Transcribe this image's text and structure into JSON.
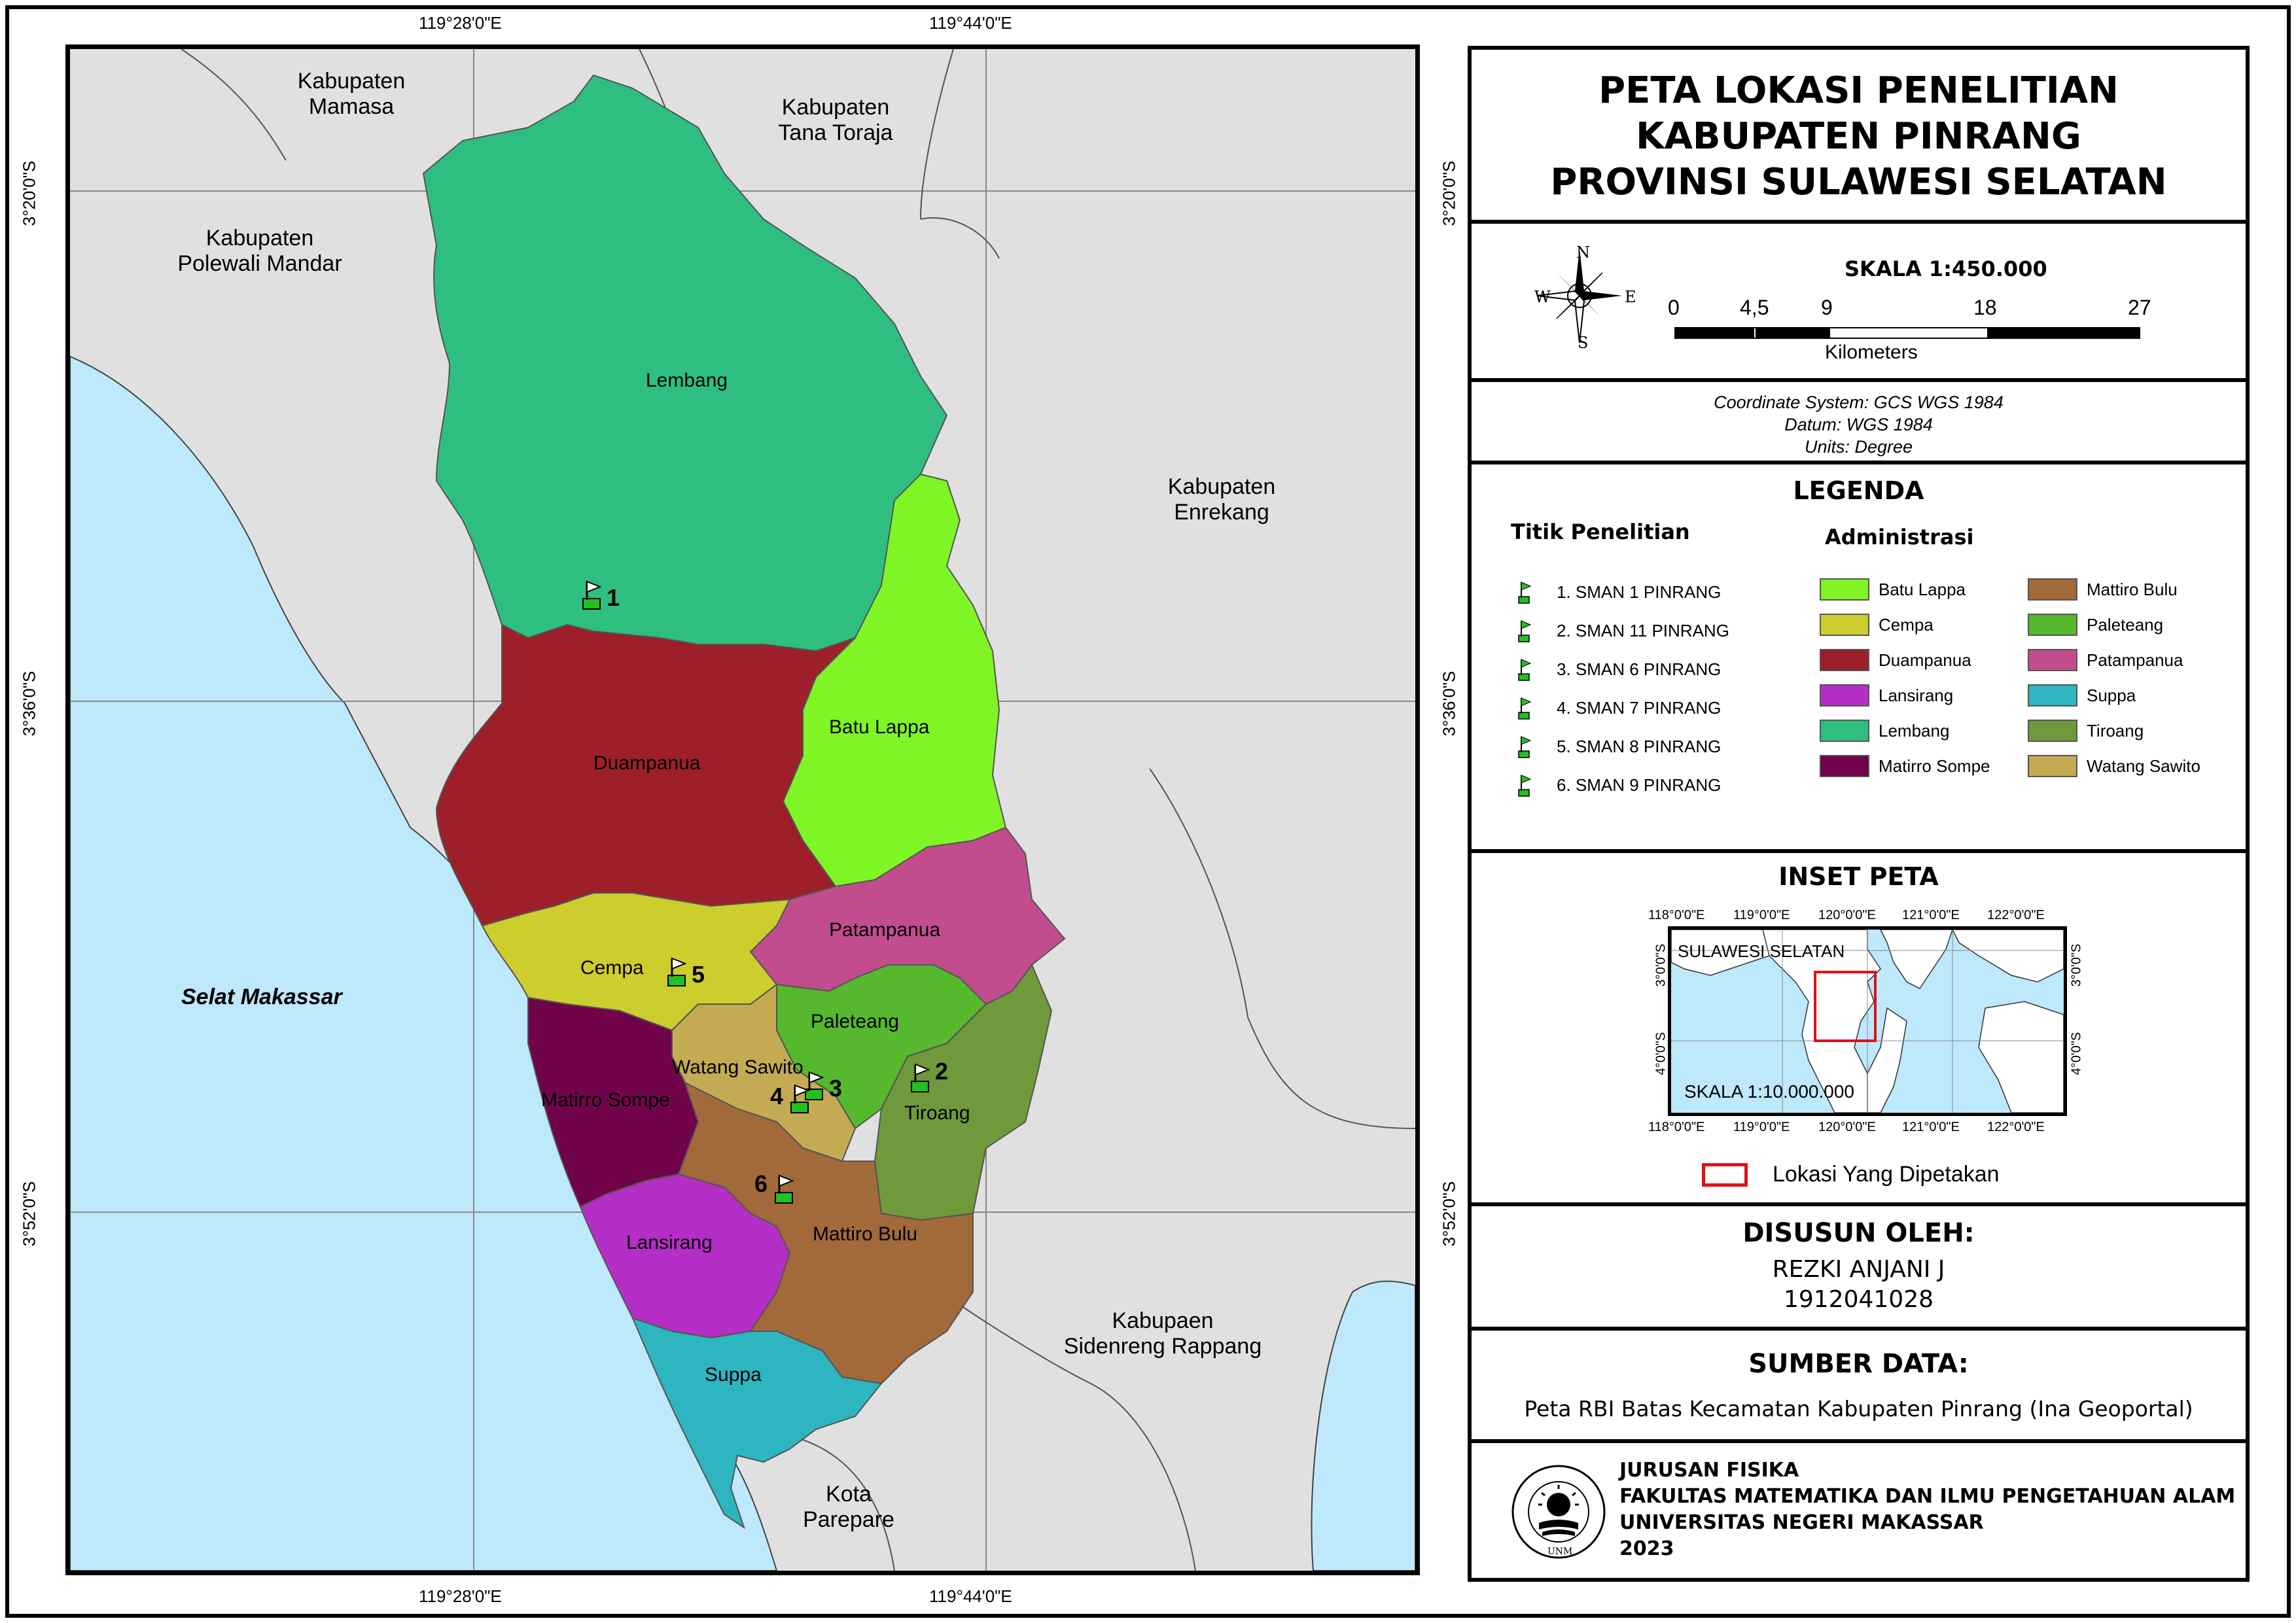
{
  "map": {
    "title_lines": [
      "PETA LOKASI PENELITIAN",
      "KABUPATEN PINRANG",
      "PROVINSI SULAWESI SELATAN"
    ],
    "graticule": {
      "top_left_lon": "119°28'0\"E",
      "top_right_lon": "119°44'0\"E",
      "bottom_left_lon": "119°28'0\"E",
      "bottom_right_lon": "119°44'0\"E",
      "lat_1": "3°20'0\"S",
      "lat_2": "3°36'0\"S",
      "lat_3": "3°52'0\"S"
    },
    "neighbor_labels": {
      "mamasa_1": "Kabupaten",
      "mamasa_2": "Mamasa",
      "toraja_1": "Kabupaten",
      "toraja_2": "Tana Toraja",
      "polman_1": "Kabupaten",
      "polman_2": "Polewali Mandar",
      "enrekang_1": "Kabupaten",
      "enrekang_2": "Enrekang",
      "sidrap_1": "Kabupaen",
      "sidrap_2": "Sidenreng Rappang",
      "parepare_1": "Kota",
      "parepare_2": "Parepare",
      "sea": "Selat Makassar"
    },
    "district_labels": {
      "lembang": "Lembang",
      "batu_lappa": "Batu Lappa",
      "duampanua": "Duampanua",
      "patampanua": "Patampanua",
      "cempa": "Cempa",
      "paleteang": "Paleteang",
      "watang_sawito": "Watang Sawito",
      "tiroang": "Tiroang",
      "matirro_sompe": "Matirro Sompe",
      "lansirang": "Lansirang",
      "mattiro_bulu": "Mattiro Bulu",
      "suppa": "Suppa"
    },
    "point_numbers": [
      "1",
      "2",
      "3",
      "4",
      "5",
      "6"
    ],
    "colors": {
      "sea": "#bee8fb",
      "land": "#e0e0e0",
      "lembang": "#2ebf80",
      "batu_lappa": "#7ff526",
      "duampanua": "#9c1f2a",
      "patampanua": "#c24d8e",
      "cempa": "#cdcd2d",
      "paleteang": "#55b82d",
      "watang_sawito": "#c4aa52",
      "tiroang": "#6f993a",
      "matirro_sompe": "#70034a",
      "lansirang": "#b52ec5",
      "mattiro_bulu": "#a2693b",
      "suppa": "#2db5c0"
    }
  },
  "scale_panel": {
    "north": "N",
    "south": "S",
    "east": "E",
    "west": "W",
    "scale_label": "SKALA 1:450.000",
    "ticks": [
      "0",
      "4,5",
      "9",
      "18",
      "27"
    ],
    "unit": "Kilometers"
  },
  "crs_panel": {
    "line1": "Coordinate System: GCS WGS 1984",
    "line2": "Datum: WGS 1984",
    "line3": "Units: Degree"
  },
  "legend": {
    "title": "LEGENDA",
    "points_heading": "Titik Penelitian",
    "admin_heading": "Administrasi",
    "points": [
      "1. SMAN 1 PINRANG",
      "2. SMAN 11 PINRANG",
      "3. SMAN 6 PINRANG",
      "4. SMAN 7 PINRANG",
      "5. SMAN 8 PINRANG",
      "6. SMAN 9 PINRANG"
    ],
    "admin_left": [
      "Batu Lappa",
      "Cempa",
      "Duampanua",
      "Lansirang",
      "Lembang",
      "Matirro Sompe"
    ],
    "admin_right": [
      "Mattiro Bulu",
      "Paleteang",
      "Patampanua",
      "Suppa",
      "Tiroang",
      "Watang Sawito"
    ]
  },
  "inset": {
    "title": "INSET PETA",
    "lon_labels": [
      "118°0'0\"E",
      "119°0'0\"E",
      "120°0'0\"E",
      "121°0'0\"E",
      "122°0'0\"E"
    ],
    "lat_labels": [
      "3°0'0\"S",
      "4°0'0\"S"
    ],
    "region": "SULAWESI SELATAN",
    "scale": "SKALA 1:10.000.000",
    "location_label": "Lokasi Yang Dipetakan"
  },
  "author": {
    "title": "DISUSUN OLEH:",
    "name": "REZKI ANJANI J",
    "id": "1912041028"
  },
  "source": {
    "title": "SUMBER DATA:",
    "text": "Peta RBI Batas Kecamatan Kabupaten Pinrang (Ina Geoportal)"
  },
  "institution": {
    "line1": "JURUSAN FISIKA",
    "line2": "FAKULTAS MATEMATIKA DAN ILMU PENGETAHUAN ALAM",
    "line3": "UNIVERSITAS NEGERI MAKASSAR",
    "line4": "2023",
    "logo_text": "UNIVERSITAS NEGERI MAKASSAR",
    "logo_abbr": "UNM"
  }
}
